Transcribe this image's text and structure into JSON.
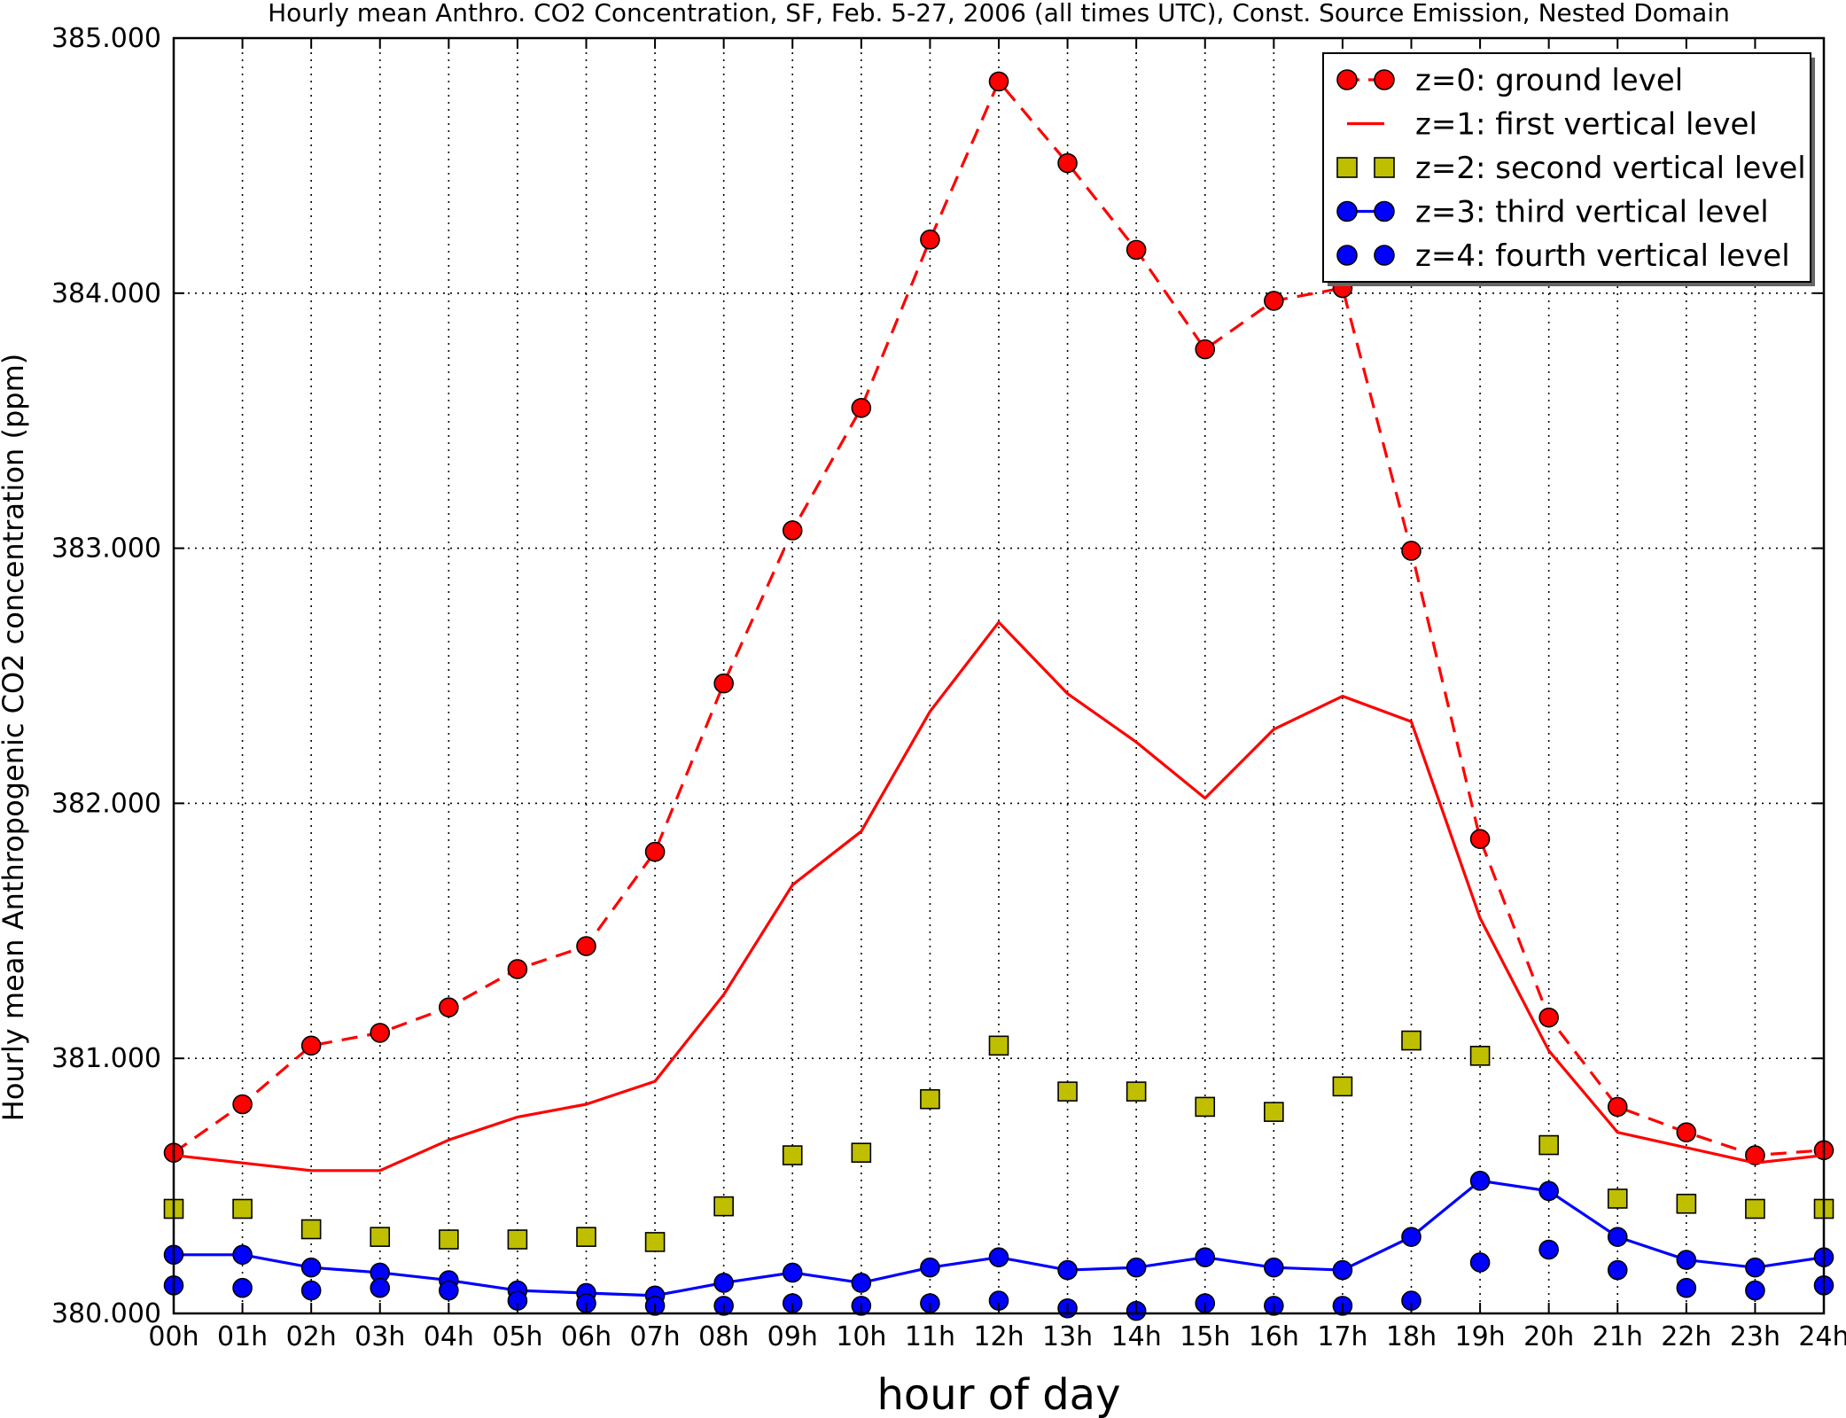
{
  "chart_data": {
    "type": "line",
    "title": "Hourly mean Anthro. CO2 Concentration, SF, Feb. 5-27, 2006 (all times UTC), Const. Source Emission, Nested Domain",
    "xlabel": "hour of day",
    "ylabel": "Hourly mean Anthropogenic CO2 concentration (ppm)",
    "categories": [
      "00h",
      "01h",
      "02h",
      "03h",
      "04h",
      "05h",
      "06h",
      "07h",
      "08h",
      "09h",
      "10h",
      "11h",
      "12h",
      "13h",
      "14h",
      "15h",
      "16h",
      "17h",
      "18h",
      "19h",
      "20h",
      "21h",
      "22h",
      "23h",
      "24h"
    ],
    "x": [
      0,
      1,
      2,
      3,
      4,
      5,
      6,
      7,
      8,
      9,
      10,
      11,
      12,
      13,
      14,
      15,
      16,
      17,
      18,
      19,
      20,
      21,
      22,
      23,
      24
    ],
    "xlim": [
      0,
      24
    ],
    "ylim": [
      380,
      385
    ],
    "yticks": [
      "380.000",
      "381.000",
      "382.000",
      "383.000",
      "384.000",
      "385.000"
    ],
    "grid": true,
    "legend_position": "top-right",
    "series": [
      {
        "name": "z=0: ground level",
        "color": "#ff0000",
        "line": "dashed",
        "marker": "circle",
        "values": [
          380.63,
          380.82,
          381.05,
          381.1,
          381.2,
          381.35,
          381.44,
          381.81,
          382.47,
          383.07,
          383.55,
          384.21,
          384.83,
          384.51,
          384.17,
          383.78,
          383.97,
          384.02,
          382.99,
          381.86,
          381.16,
          380.81,
          380.71,
          380.62,
          380.64
        ]
      },
      {
        "name": "z=1: first vertical level",
        "color": "#ff0000",
        "line": "solid",
        "marker": "none",
        "values": [
          380.62,
          380.59,
          380.56,
          380.56,
          380.68,
          380.77,
          380.82,
          380.91,
          381.25,
          381.68,
          381.89,
          382.36,
          382.71,
          382.43,
          382.24,
          382.02,
          382.29,
          382.42,
          382.32,
          381.55,
          381.03,
          380.71,
          380.65,
          380.59,
          380.62
        ]
      },
      {
        "name": "z=2: second vertical level",
        "color": "#bfbf00",
        "line": "none",
        "marker": "square",
        "values": [
          380.41,
          380.41,
          380.33,
          380.3,
          380.29,
          380.29,
          380.3,
          380.28,
          380.42,
          380.62,
          380.63,
          380.84,
          381.05,
          380.87,
          380.87,
          380.81,
          380.79,
          380.89,
          381.07,
          381.01,
          380.66,
          380.45,
          380.43,
          380.41,
          380.41
        ]
      },
      {
        "name": "z=3: third vertical level",
        "color": "#0000ff",
        "line": "solid",
        "marker": "circle",
        "values": [
          380.23,
          380.23,
          380.18,
          380.16,
          380.13,
          380.09,
          380.08,
          380.07,
          380.12,
          380.16,
          380.12,
          380.18,
          380.22,
          380.17,
          380.18,
          380.22,
          380.18,
          380.17,
          380.3,
          380.52,
          380.48,
          380.3,
          380.21,
          380.18,
          380.22
        ]
      },
      {
        "name": "z=4: fourth vertical level",
        "color": "#0000ff",
        "line": "none",
        "marker": "circle",
        "values": [
          380.11,
          380.1,
          380.09,
          380.1,
          380.09,
          380.05,
          380.04,
          380.03,
          380.03,
          380.04,
          380.03,
          380.04,
          380.05,
          380.02,
          380.01,
          380.04,
          380.03,
          380.03,
          380.05,
          380.2,
          380.25,
          380.17,
          380.1,
          380.09,
          380.11
        ]
      }
    ]
  }
}
